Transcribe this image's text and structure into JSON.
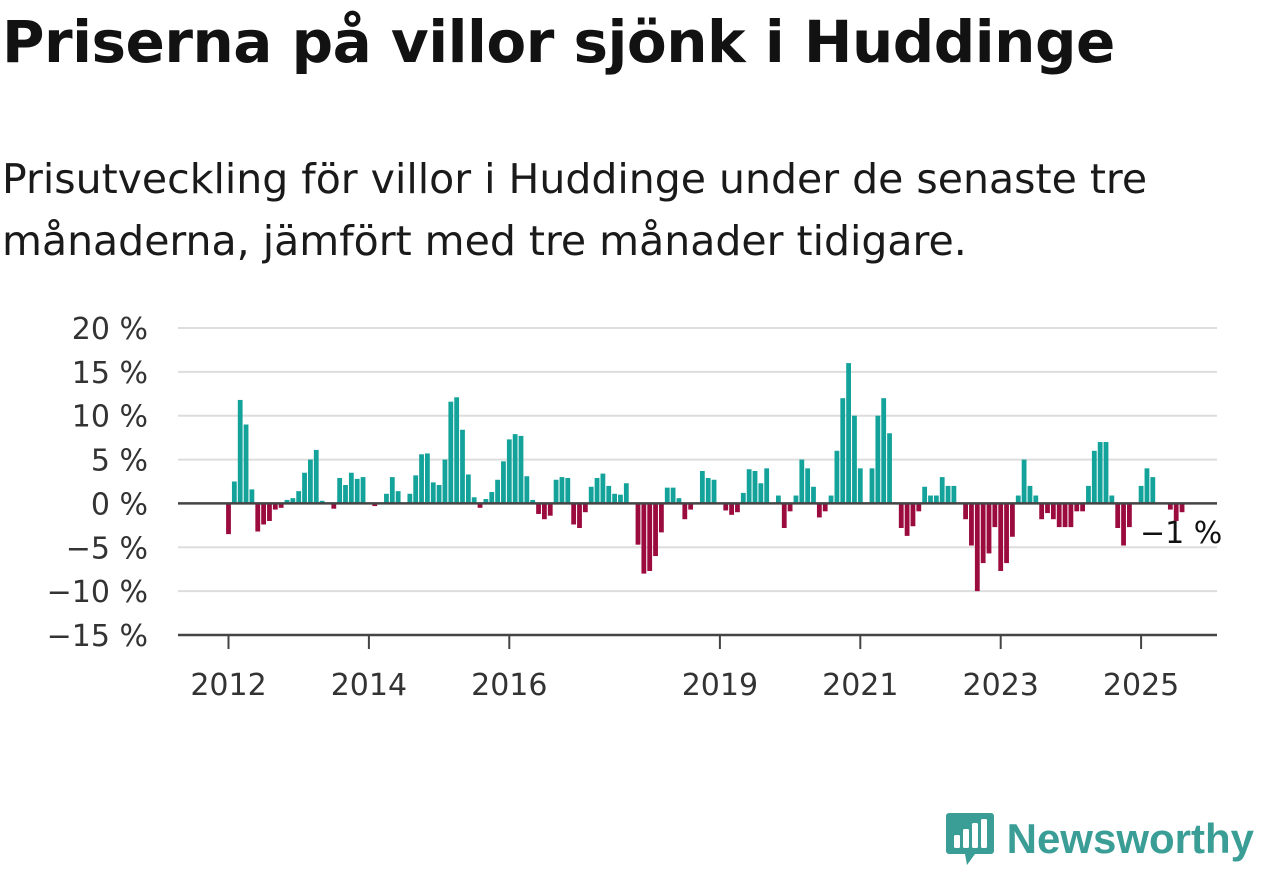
{
  "header": {
    "title": "Priserna på villor sjönk i Huddinge",
    "subtitle": "Prisutveckling för villor i Huddinge under de senaste tre månaderna, jämfört med tre månader tidigare."
  },
  "brand": {
    "name": "Newsworthy",
    "icon": "newsworthy-logo-icon",
    "color": "#3a9e96"
  },
  "colors": {
    "positive": "#14a39a",
    "negative": "#9b0b3e",
    "grid": "#dddddd",
    "axis": "#444444"
  },
  "chart_data": {
    "type": "bar",
    "ylim": [
      -15,
      20
    ],
    "y_ticks": [
      20,
      15,
      10,
      5,
      0,
      -5,
      -10,
      -15
    ],
    "y_tick_labels": [
      "20 %",
      "15 %",
      "10 %",
      "5 %",
      "0 %",
      "−5 %",
      "−10 %",
      "−15 %"
    ],
    "x_start": "2012-01",
    "x_ticks": [
      {
        "label": "2012",
        "date": "2012-01"
      },
      {
        "label": "2014",
        "date": "2014-01"
      },
      {
        "label": "2016",
        "date": "2016-01"
      },
      {
        "label": "2019",
        "date": "2019-01"
      },
      {
        "label": "2021",
        "date": "2021-01"
      },
      {
        "label": "2023",
        "date": "2023-01"
      },
      {
        "label": "2025",
        "date": "2025-01"
      }
    ],
    "last_value_label": "−1 %",
    "values": [
      -3.5,
      2.5,
      11.8,
      9,
      1.6,
      -3.2,
      -2.4,
      -2,
      -0.7,
      -0.5,
      0.4,
      0.6,
      1.4,
      3.5,
      5,
      6.1,
      0.3,
      0,
      -0.6,
      2.9,
      2.1,
      3.5,
      2.8,
      3,
      0,
      -0.3,
      0,
      1.1,
      3,
      1.4,
      0,
      1.1,
      3.2,
      5.6,
      5.7,
      2.4,
      2.1,
      5,
      11.6,
      12.1,
      8.4,
      3.3,
      0.7,
      -0.5,
      0.5,
      1.3,
      2.7,
      4.8,
      7.3,
      7.9,
      7.7,
      3.1,
      0.4,
      -1.2,
      -1.8,
      -1.4,
      2.7,
      3,
      2.9,
      -2.4,
      -2.8,
      -1,
      1.9,
      2.9,
      3.4,
      2,
      1.1,
      1,
      2.3,
      0,
      -4.7,
      -8,
      -7.7,
      -6,
      -3.3,
      1.8,
      1.8,
      0.6,
      -1.8,
      -0.7,
      0,
      3.7,
      2.9,
      2.7,
      0,
      -0.8,
      -1.3,
      -1,
      1.2,
      3.9,
      3.7,
      2.3,
      4,
      0,
      0.9,
      -2.8,
      -0.9,
      0.9,
      5,
      4,
      1.9,
      -1.6,
      -0.9,
      0.9,
      6,
      12,
      16,
      10,
      4,
      0,
      4,
      10,
      12,
      8,
      0,
      -2.8,
      -3.7,
      -2.6,
      -0.9,
      1.9,
      0.9,
      0.9,
      3,
      2,
      2,
      0,
      -1.8,
      -4.8,
      -10,
      -6.8,
      -5.7,
      -2.7,
      -7.7,
      -6.8,
      -3.8,
      0.9,
      5,
      2,
      0.9,
      -1.8,
      -1.1,
      -1.8,
      -2.7,
      -2.7,
      -2.7,
      -0.9,
      -0.9,
      2,
      6,
      7,
      7,
      0.9,
      -2.8,
      -4.8,
      -2.7,
      0,
      2,
      4,
      3,
      0,
      0,
      -0.7,
      -2,
      -1
    ]
  }
}
